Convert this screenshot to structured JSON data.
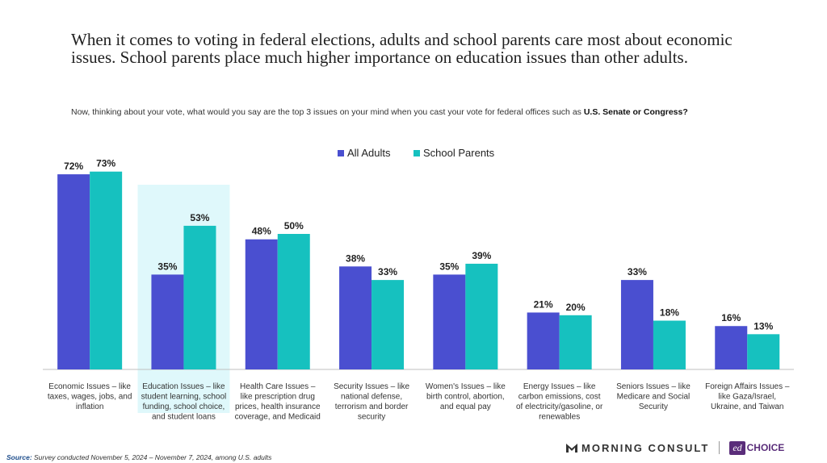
{
  "headline": "When it comes to voting in federal elections, adults and school parents care most about economic issues. School parents place much higher importance on education issues than other adults.",
  "question": {
    "text": "Now, thinking about your vote, what would you say are the top 3 issues on your mind when you cast your vote for federal offices such as ",
    "bold": "U.S. Senate or Congress?"
  },
  "colors": {
    "all_adults": "#4a4fd0",
    "school_parents": "#16c1bf",
    "highlight": "#dff8fb"
  },
  "chart_data": {
    "type": "bar",
    "categories": [
      "Economic Issues – like taxes, wages, jobs, and inflation",
      "Education Issues – like student learning, school funding, school choice, and student loans",
      "Health Care Issues – like prescription drug prices, health insurance coverage, and Medicaid",
      "Security Issues – like national defense, terrorism and border security",
      "Women's Issues – like birth control, abortion, and equal pay",
      "Energy Issues – like carbon emissions, cost of electricity/gasoline, or renewables",
      "Seniors Issues – like Medicare and Social Security",
      "Foreign Affairs Issues – like Gaza/Israel, Ukraine, and Taiwan"
    ],
    "category_lines": [
      [
        "Economic Issues – like",
        "taxes, wages, jobs, and",
        "inflation"
      ],
      [
        "Education Issues – like",
        "student learning, school",
        "funding, school choice,",
        "and student loans"
      ],
      [
        "Health Care Issues –",
        "like prescription drug",
        "prices, health insurance",
        "coverage, and Medicaid"
      ],
      [
        "Security Issues – like",
        "national defense,",
        "terrorism and border",
        "security"
      ],
      [
        "Women's Issues – like",
        "birth control, abortion,",
        "and equal pay"
      ],
      [
        "Energy Issues – like",
        "carbon emissions, cost",
        "of electricity/gasoline, or",
        "renewables"
      ],
      [
        "Seniors Issues – like",
        "Medicare and Social",
        "Security"
      ],
      [
        "Foreign Affairs Issues –",
        "like Gaza/Israel,",
        "Ukraine, and Taiwan"
      ]
    ],
    "series": [
      {
        "name": "All Adults",
        "values": [
          72,
          35,
          48,
          38,
          35,
          21,
          33,
          16
        ]
      },
      {
        "name": "School Parents",
        "values": [
          73,
          53,
          50,
          33,
          39,
          20,
          18,
          13
        ]
      }
    ],
    "value_labels": [
      [
        "72%",
        "35%",
        "48%",
        "38%",
        "35%",
        "21%",
        "33%",
        "16%"
      ],
      [
        "73%",
        "53%",
        "50%",
        "33%",
        "39%",
        "20%",
        "18%",
        "13%"
      ]
    ],
    "highlighted_category": 1,
    "ylim": [
      0,
      80
    ],
    "legend_position": "top-center",
    "grid": false
  },
  "footer": {
    "source_label": "Source:",
    "source_text": " Survey conducted November 5, 2024 – November 7, 2024, among U.S. adults",
    "brand1": "MORNING CONSULT",
    "brand2_mark": "ed",
    "brand2_text": "CHOICE"
  }
}
